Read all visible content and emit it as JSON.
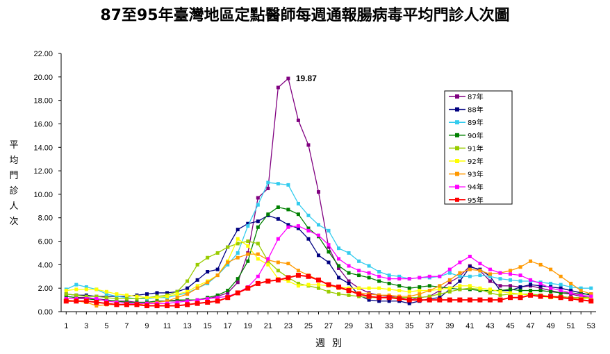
{
  "chart_data": {
    "type": "line",
    "title": "87至95年臺灣地區定點醫師每週通報腸病毒平均門診人次圖",
    "ylabel": "平均門診人次",
    "xlabel": "週別",
    "ylim": [
      0,
      22
    ],
    "yticks": [
      "0.00",
      "2.00",
      "4.00",
      "6.00",
      "8.00",
      "10.00",
      "12.00",
      "14.00",
      "16.00",
      "18.00",
      "20.00",
      "22.00"
    ],
    "xlim": [
      1,
      53
    ],
    "xticks": [
      1,
      3,
      5,
      7,
      9,
      11,
      13,
      15,
      17,
      19,
      21,
      23,
      25,
      27,
      29,
      31,
      33,
      35,
      37,
      39,
      41,
      43,
      45,
      47,
      49,
      51,
      53
    ],
    "grid": false,
    "legend_position": "right",
    "annotation": {
      "text": "19.87",
      "x": 23,
      "y": 19.87
    },
    "series": [
      {
        "name": "87年",
        "color": "#800080",
        "marker": "square",
        "x_start": 1,
        "values": [
          1.3,
          1.2,
          1.2,
          1.1,
          1.0,
          0.9,
          0.9,
          0.8,
          0.8,
          0.9,
          0.9,
          0.9,
          1.0,
          1.0,
          1.1,
          1.3,
          1.6,
          2.5,
          5.0,
          9.7,
          10.5,
          19.1,
          19.87,
          16.3,
          14.2,
          10.2,
          5.5,
          3.7,
          2.6,
          2.0,
          1.6,
          1.4,
          1.3,
          1.2,
          1.0,
          1.2,
          1.3,
          1.8,
          2.5,
          3.0,
          3.9,
          3.5,
          2.6,
          2.2,
          2.2,
          2.1,
          2.2,
          2.0,
          1.8,
          1.6,
          1.5,
          1.3,
          1.2
        ]
      },
      {
        "name": "88年",
        "color": "#000080",
        "marker": "square",
        "x_start": 1,
        "values": [
          1.5,
          1.4,
          1.4,
          1.3,
          1.3,
          1.3,
          1.3,
          1.4,
          1.5,
          1.6,
          1.6,
          1.7,
          2.0,
          2.7,
          3.4,
          3.6,
          5.5,
          7.0,
          7.5,
          7.7,
          8.2,
          7.9,
          7.4,
          7.1,
          6.2,
          4.8,
          4.2,
          2.9,
          2.4,
          1.4,
          1.0,
          0.9,
          0.9,
          0.9,
          0.7,
          0.9,
          1.1,
          1.2,
          1.9,
          2.6,
          3.8,
          3.6,
          3.0,
          1.8,
          1.8,
          2.1,
          2.3,
          2.2,
          2.1,
          2.0,
          1.8,
          1.6,
          1.4
        ]
      },
      {
        "name": "89年",
        "color": "#33CCEE",
        "marker": "square",
        "x_start": 1,
        "values": [
          1.9,
          2.3,
          2.1,
          1.9,
          1.5,
          1.3,
          1.2,
          1.1,
          1.1,
          1.2,
          1.2,
          1.4,
          1.6,
          2.0,
          2.4,
          3.1,
          4.0,
          5.0,
          7.3,
          9.1,
          11.0,
          10.9,
          10.8,
          9.2,
          8.2,
          7.4,
          6.9,
          5.4,
          5.0,
          4.3,
          3.9,
          3.4,
          3.1,
          3.0,
          2.8,
          2.9,
          2.9,
          3.0,
          3.3,
          3.0,
          3.0,
          3.1,
          3.0,
          2.8,
          2.7,
          2.6,
          2.6,
          2.5,
          2.4,
          2.3,
          2.1,
          2.0,
          2.0
        ]
      },
      {
        "name": "90年",
        "color": "#008000",
        "marker": "square",
        "x_start": 1,
        "values": [
          1.3,
          1.2,
          1.1,
          1.0,
          1.0,
          0.9,
          0.8,
          0.8,
          0.8,
          0.9,
          0.9,
          1.0,
          1.0,
          1.0,
          1.2,
          1.4,
          1.8,
          2.8,
          4.3,
          7.2,
          8.3,
          8.9,
          8.7,
          8.3,
          7.1,
          6.4,
          5.1,
          3.9,
          3.3,
          3.1,
          2.9,
          2.6,
          2.4,
          2.2,
          2.0,
          2.1,
          2.2,
          2.1,
          2.0,
          1.9,
          1.9,
          1.8,
          1.8,
          1.8,
          1.9,
          1.8,
          1.8,
          1.8,
          1.7,
          1.6,
          1.6,
          1.5,
          1.5
        ]
      },
      {
        "name": "91年",
        "color": "#99CC00",
        "marker": "square",
        "x_start": 1,
        "values": [
          1.5,
          1.4,
          1.3,
          1.3,
          1.2,
          1.1,
          1.1,
          1.1,
          1.2,
          1.3,
          1.4,
          1.7,
          2.6,
          4.0,
          4.6,
          5.0,
          5.5,
          5.8,
          6.0,
          5.8,
          4.3,
          3.5,
          2.9,
          2.4,
          2.2,
          2.0,
          1.7,
          1.5,
          1.4,
          1.3,
          1.2,
          1.2,
          1.2,
          1.2,
          1.2,
          1.2,
          1.3,
          1.5,
          1.7,
          1.9,
          2.0,
          1.9,
          1.6,
          1.4,
          1.5,
          1.5,
          1.5,
          1.4,
          1.3,
          1.3,
          1.2,
          1.2,
          1.2
        ]
      },
      {
        "name": "92年",
        "color": "#FFFF00",
        "marker": "square",
        "x_start": 1,
        "values": [
          1.8,
          1.9,
          1.9,
          1.9,
          1.7,
          1.5,
          1.4,
          1.3,
          1.2,
          1.2,
          1.3,
          1.5,
          1.7,
          2.2,
          2.6,
          3.1,
          4.3,
          6.2,
          5.6,
          4.5,
          4.0,
          2.8,
          2.6,
          2.2,
          2.3,
          2.3,
          2.2,
          2.1,
          2.0,
          2.0,
          2.0,
          2.0,
          1.9,
          1.8,
          1.7,
          1.8,
          1.8,
          1.9,
          2.0,
          2.2,
          2.2,
          2.0,
          1.9,
          1.7,
          1.6,
          1.5,
          1.4,
          1.3,
          1.2,
          1.2,
          1.1,
          1.1,
          1.1
        ]
      },
      {
        "name": "93年",
        "color": "#FF9900",
        "marker": "square",
        "x_start": 1,
        "values": [
          1.0,
          0.9,
          0.8,
          0.5,
          0.6,
          0.6,
          0.6,
          0.6,
          0.7,
          0.8,
          0.9,
          1.2,
          1.5,
          2.0,
          2.5,
          3.1,
          4.2,
          4.6,
          4.9,
          4.9,
          4.4,
          4.2,
          4.1,
          3.5,
          3.1,
          2.7,
          2.3,
          2.0,
          1.8,
          1.6,
          1.5,
          1.4,
          1.4,
          1.3,
          1.3,
          1.5,
          1.8,
          2.2,
          2.7,
          3.3,
          3.6,
          3.5,
          3.2,
          3.3,
          3.5,
          3.8,
          4.3,
          4.0,
          3.6,
          3.0,
          2.4,
          1.8,
          1.5
        ]
      },
      {
        "name": "94年",
        "color": "#FF00FF",
        "marker": "square",
        "x_start": 1,
        "values": [
          1.1,
          1.1,
          1.1,
          1.1,
          0.9,
          0.8,
          0.7,
          0.7,
          0.7,
          0.7,
          0.7,
          0.8,
          0.9,
          1.0,
          1.1,
          1.2,
          1.3,
          1.6,
          2.1,
          3.0,
          4.5,
          6.2,
          7.2,
          7.3,
          6.9,
          6.5,
          5.7,
          4.5,
          3.9,
          3.5,
          3.3,
          3.0,
          2.8,
          2.8,
          2.8,
          2.9,
          3.0,
          3.0,
          3.6,
          4.2,
          4.7,
          4.1,
          3.6,
          3.3,
          3.2,
          3.1,
          2.7,
          2.4,
          2.0,
          1.8,
          1.6,
          1.4,
          1.3
        ]
      },
      {
        "name": "95年",
        "color": "#FF0000",
        "marker": "square",
        "x_start": 1,
        "values": [
          0.9,
          0.9,
          0.9,
          0.8,
          0.7,
          0.6,
          0.6,
          0.6,
          0.5,
          0.5,
          0.5,
          0.5,
          0.6,
          0.7,
          0.8,
          0.9,
          1.2,
          1.6,
          2.0,
          2.4,
          2.6,
          2.7,
          2.9,
          3.1,
          3.0,
          2.7,
          2.3,
          2.1,
          1.8,
          1.5,
          1.3,
          1.2,
          1.2,
          1.1,
          1.0,
          1.0,
          1.0,
          1.0,
          1.0,
          1.0,
          1.0,
          1.0,
          1.0,
          1.0,
          1.2,
          1.2,
          1.4,
          1.3,
          1.3,
          1.2,
          1.1,
          1.0,
          0.9
        ]
      }
    ]
  }
}
